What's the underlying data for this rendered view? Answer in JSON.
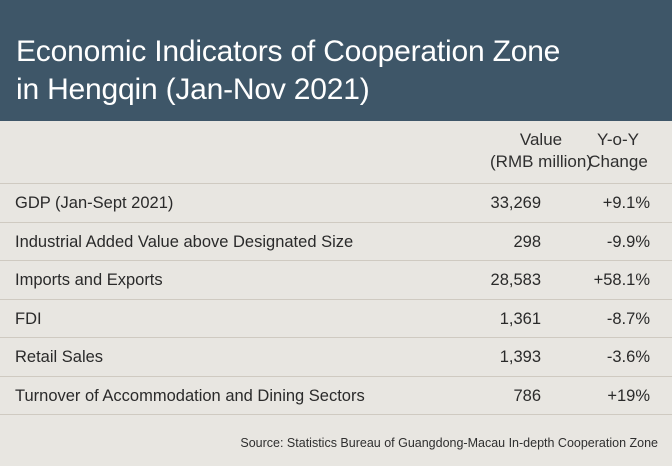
{
  "header": {
    "title_line1": "Economic Indicators of Cooperation Zone",
    "title_line2": "in Hengqin (Jan-Nov 2021)"
  },
  "columns": {
    "value_line1": "Value",
    "value_line2": "(RMB million)",
    "change_line1": "Y-o-Y",
    "change_line2": "Change"
  },
  "chart_data": {
    "type": "table",
    "title": "Economic Indicators of Cooperation Zone in Hengqin (Jan-Nov 2021)",
    "headers": [
      "",
      "Value (RMB million)",
      "Y-o-Y Change"
    ],
    "rows": [
      {
        "label": "GDP (Jan-Sept 2021)",
        "value": "33,269",
        "change": "+9.1%"
      },
      {
        "label": "Industrial Added Value above Designated Size",
        "value": "298",
        "change": "-9.9%"
      },
      {
        "label": "Imports and Exports",
        "value": "28,583",
        "change": "+58.1%"
      },
      {
        "label": "FDI",
        "value": "1,361",
        "change": "-8.7%"
      },
      {
        "label": "Retail Sales",
        "value": "1,393",
        "change": "-3.6%"
      },
      {
        "label": "Turnover of Accommodation and Dining Sectors",
        "value": "786",
        "change": "+19%"
      }
    ]
  },
  "footer": {
    "source": "Source: Statistics Bureau of Guangdong-Macau In-depth Cooperation Zone"
  },
  "colors": {
    "header_bg": "#3e5668",
    "body_bg": "#e8e6e1"
  }
}
